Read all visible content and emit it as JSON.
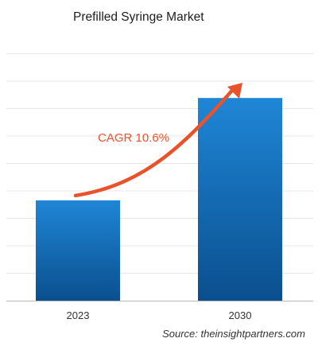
{
  "chart_data": {
    "type": "bar",
    "title": "Prefilled Syringe Market",
    "categories": [
      "2023",
      "2030"
    ],
    "values": [
      1.0,
      2.02
    ],
    "ylim": [
      0,
      2.6
    ],
    "grid": true,
    "legend": "none",
    "annotation": {
      "text": "CAGR 10.6%",
      "arrow": "growth arrow from 2023 bar to 2030 bar"
    },
    "colors": {
      "bar_top": "#1f86d6",
      "bar_bottom": "#0a4f8e",
      "arrow": "#e9532b",
      "annotation_text": "#e9532b",
      "grid": "#e7e7e7",
      "axis": "#b9b9b9"
    }
  },
  "source_text": "Source: theinsightpartners.com"
}
